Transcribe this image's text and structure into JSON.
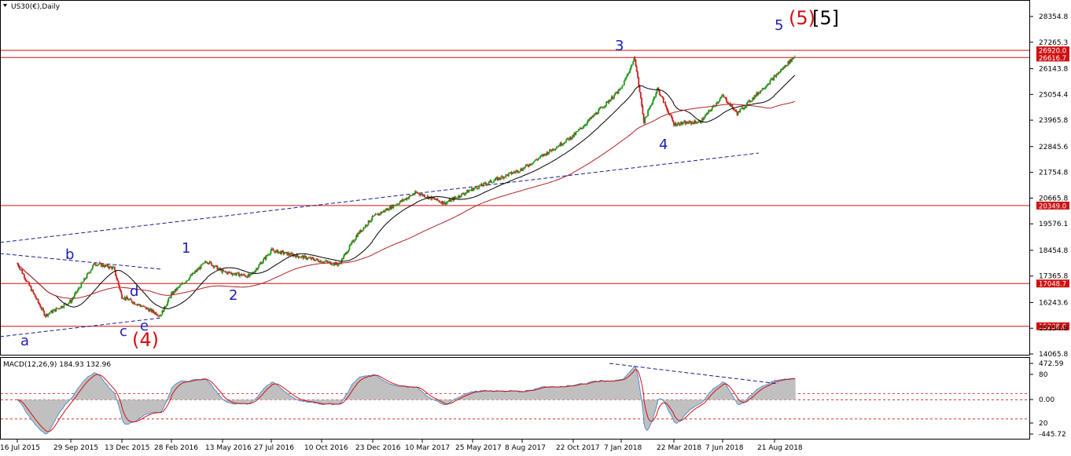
{
  "symbol_label": "US30(€),Daily",
  "indicator_label": "MACD(12,26,9) 184.93 132.96",
  "colors": {
    "background": "#ffffff",
    "candle_up": "#1a9a1a",
    "candle_down": "#cc2020",
    "ma_fast": "#000000",
    "ma_slow": "#b02020",
    "hline": "#d01010",
    "trendline": "#1a1a8c",
    "wave_blue": "#1c1cb4",
    "wave_red": "#d01010",
    "macd_hist": "#c0c0c0",
    "macd_line": "#3a7fd0",
    "macd_signal": "#d01010",
    "price_tag_bg": "#d01010"
  },
  "chart_data": [
    {
      "type": "candlestick",
      "title": "US30(€),Daily",
      "price_axis_ticks": [
        "28354.8",
        "27265.3",
        "26143.8",
        "25054.4",
        "23965.8",
        "22845.6",
        "21754.8",
        "20665.8",
        "19576.1",
        "18454.8",
        "17365.8",
        "16243.6",
        "15154.8",
        "14065.8"
      ],
      "date_axis_ticks": [
        "16 Jul 2015",
        "29 Sep 2015",
        "13 Dec 2015",
        "28 Feb 2016",
        "13 May 2016",
        "27 Jul 2016",
        "10 Oct 2016",
        "23 Dec 2016",
        "10 Mar 2017",
        "25 May 2017",
        "8 Aug 2017",
        "22 Oct 2017",
        "7 Jan 2018",
        "22 Mar 2018",
        "7 Jun 2018",
        "21 Aug 2018"
      ],
      "horizontal_levels": [
        "26920.0",
        "26616.7",
        "20349.0",
        "17048.7",
        "15238.0"
      ],
      "wave_labels_blue": [
        "a",
        "b",
        "c",
        "d",
        "e",
        "1",
        "2",
        "3",
        "4",
        "5"
      ],
      "wave_labels_red": [
        "(4)",
        "(5)"
      ],
      "wave_label_black": "[5]",
      "price_path": [
        {
          "date": "16 Jul 2015",
          "close": 17900
        },
        {
          "date": "24 Aug 2015",
          "close": 15700
        },
        {
          "date": "29 Sep 2015",
          "close": 16300
        },
        {
          "date": "3 Nov 2015",
          "close": 17900
        },
        {
          "date": "1 Dec 2015",
          "close": 17700
        },
        {
          "date": "13 Dec 2015",
          "close": 16500
        },
        {
          "date": "11 Feb 2016",
          "close": 15700
        },
        {
          "date": "28 Feb 2016",
          "close": 16600
        },
        {
          "date": "20 Apr 2016",
          "close": 18000
        },
        {
          "date": "13 May 2016",
          "close": 17550
        },
        {
          "date": "24 Jun 2016",
          "close": 17350
        },
        {
          "date": "27 Jul 2016",
          "close": 18450
        },
        {
          "date": "4 Nov 2016",
          "close": 17850
        },
        {
          "date": "30 Nov 2016",
          "close": 19100
        },
        {
          "date": "23 Dec 2016",
          "close": 19850
        },
        {
          "date": "1 Mar 2017",
          "close": 20900
        },
        {
          "date": "13 Apr 2017",
          "close": 20450
        },
        {
          "date": "25 May 2017",
          "close": 21050
        },
        {
          "date": "8 Aug 2017",
          "close": 21900
        },
        {
          "date": "22 Oct 2017",
          "close": 23300
        },
        {
          "date": "7 Jan 2018",
          "close": 25300
        },
        {
          "date": "26 Jan 2018",
          "close": 26600
        },
        {
          "date": "8 Feb 2018",
          "close": 23900
        },
        {
          "date": "27 Feb 2018",
          "close": 25300
        },
        {
          "date": "22 Mar 2018",
          "close": 23800
        },
        {
          "date": "3 May 2018",
          "close": 23900
        },
        {
          "date": "7 Jun 2018",
          "close": 25000
        },
        {
          "date": "28 Jun 2018",
          "close": 24250
        },
        {
          "date": "21 Aug 2018",
          "close": 25800
        },
        {
          "date": "20 Sep 2018",
          "close": 26700
        }
      ],
      "macd_axis_ticks": [
        "472.59",
        "80",
        "0.00",
        "20",
        "-445.72"
      ]
    }
  ]
}
